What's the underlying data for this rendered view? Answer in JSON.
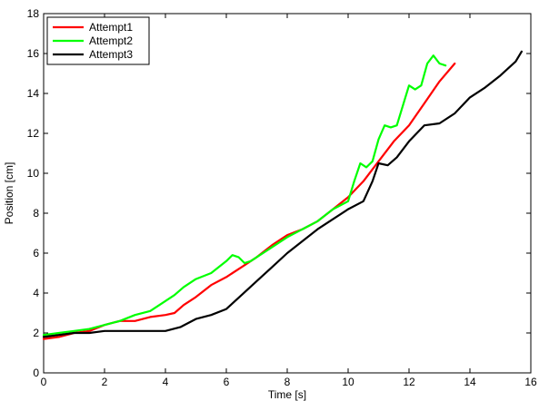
{
  "chart_data": {
    "type": "line",
    "title": "",
    "xlabel": "Time [s]",
    "ylabel": "Position [cm]",
    "xlim": [
      0,
      16
    ],
    "ylim": [
      0,
      18
    ],
    "xticks": [
      0,
      2,
      4,
      6,
      8,
      10,
      12,
      14,
      16
    ],
    "yticks": [
      0,
      2,
      4,
      6,
      8,
      10,
      12,
      14,
      16,
      18
    ],
    "xtick_labels": [
      "0",
      "2",
      "4",
      "6",
      "8",
      "10",
      "12",
      "14",
      "16"
    ],
    "ytick_labels": [
      "0",
      "2",
      "4",
      "6",
      "8",
      "10",
      "12",
      "14",
      "16",
      "18"
    ],
    "grid": false,
    "legend_position": "top-left",
    "series": [
      {
        "name": "Attempt1",
        "color": "#ff0000",
        "x": [
          0,
          0.5,
          1.0,
          1.5,
          2.0,
          2.5,
          3.0,
          3.5,
          4.0,
          4.3,
          4.6,
          5.0,
          5.5,
          6.0,
          6.5,
          7.0,
          7.5,
          8.0,
          8.5,
          9.0,
          9.5,
          10.0,
          10.5,
          11.0,
          11.5,
          12.0,
          12.5,
          13.0,
          13.5
        ],
        "y": [
          1.7,
          1.8,
          2.0,
          2.1,
          2.4,
          2.6,
          2.6,
          2.8,
          2.9,
          3.0,
          3.4,
          3.8,
          4.4,
          4.8,
          5.3,
          5.8,
          6.4,
          6.9,
          7.2,
          7.6,
          8.2,
          8.8,
          9.6,
          10.6,
          11.6,
          12.4,
          13.5,
          14.6,
          15.5
        ]
      },
      {
        "name": "Attempt2",
        "color": "#00ff00",
        "x": [
          0,
          0.5,
          1.0,
          1.5,
          2.0,
          2.5,
          3.0,
          3.5,
          4.0,
          4.3,
          4.6,
          5.0,
          5.5,
          6.0,
          6.2,
          6.4,
          6.6,
          6.8,
          7.0,
          7.5,
          8.0,
          8.5,
          9.0,
          9.5,
          10.0,
          10.2,
          10.4,
          10.6,
          10.8,
          11.0,
          11.2,
          11.4,
          11.6,
          11.8,
          12.0,
          12.2,
          12.4,
          12.6,
          12.8,
          13.0,
          13.2
        ],
        "y": [
          1.9,
          2.0,
          2.1,
          2.2,
          2.4,
          2.6,
          2.9,
          3.1,
          3.6,
          3.9,
          4.3,
          4.7,
          5.0,
          5.6,
          5.9,
          5.8,
          5.5,
          5.6,
          5.8,
          6.3,
          6.8,
          7.2,
          7.6,
          8.2,
          8.6,
          9.6,
          10.5,
          10.3,
          10.6,
          11.7,
          12.4,
          12.3,
          12.4,
          13.4,
          14.4,
          14.2,
          14.4,
          15.5,
          15.9,
          15.5,
          15.4
        ]
      },
      {
        "name": "Attempt3",
        "color": "#000000",
        "x": [
          0,
          0.5,
          1.0,
          1.5,
          2.0,
          2.5,
          3.0,
          3.5,
          4.0,
          4.5,
          5.0,
          5.5,
          6.0,
          6.5,
          7.0,
          7.5,
          8.0,
          8.5,
          9.0,
          9.5,
          10.0,
          10.5,
          10.8,
          11.0,
          11.3,
          11.6,
          12.0,
          12.5,
          13.0,
          13.5,
          14.0,
          14.5,
          15.0,
          15.5,
          15.7
        ],
        "y": [
          1.8,
          1.9,
          2.0,
          2.0,
          2.1,
          2.1,
          2.1,
          2.1,
          2.1,
          2.3,
          2.7,
          2.9,
          3.2,
          3.9,
          4.6,
          5.3,
          6.0,
          6.6,
          7.2,
          7.7,
          8.2,
          8.6,
          9.6,
          10.5,
          10.4,
          10.8,
          11.6,
          12.4,
          12.5,
          13.0,
          13.8,
          14.3,
          14.9,
          15.6,
          16.1
        ]
      }
    ]
  }
}
